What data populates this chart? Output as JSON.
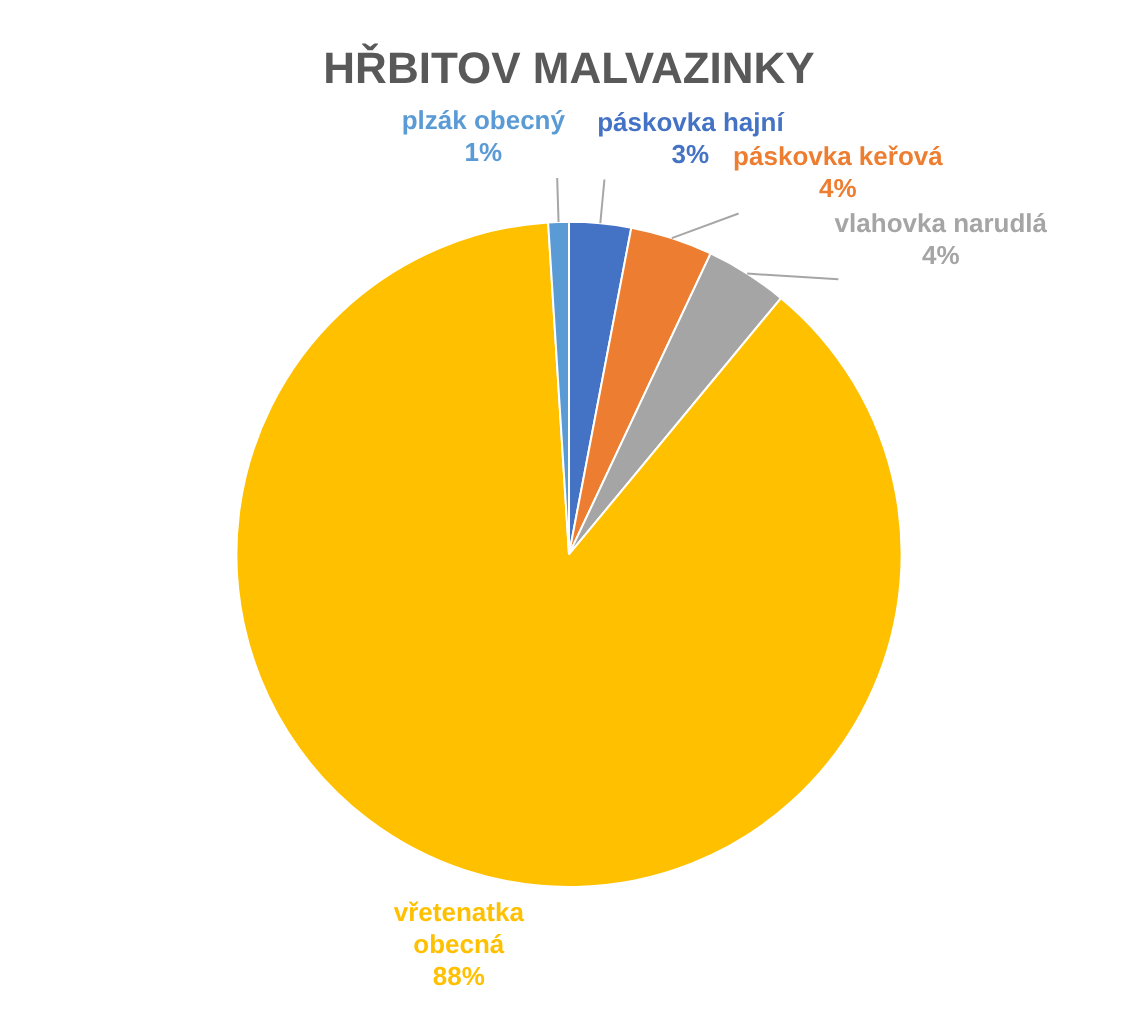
{
  "chart_data": {
    "type": "pie",
    "title": "HŘBITOV MALVAZINKY",
    "categories": [
      "páskovka hajní",
      "páskovka keřová",
      "vlahovka narudlá",
      "vřetenatka obecná",
      "plzák obecný"
    ],
    "values": [
      3,
      4,
      4,
      88,
      1
    ],
    "value_labels": [
      "3%",
      "4%",
      "4%",
      "88%",
      "1%"
    ],
    "colors": [
      "#4472c4",
      "#ed7d31",
      "#a5a5a5",
      "#ffc000",
      "#5b9bd5"
    ],
    "legend": false
  }
}
